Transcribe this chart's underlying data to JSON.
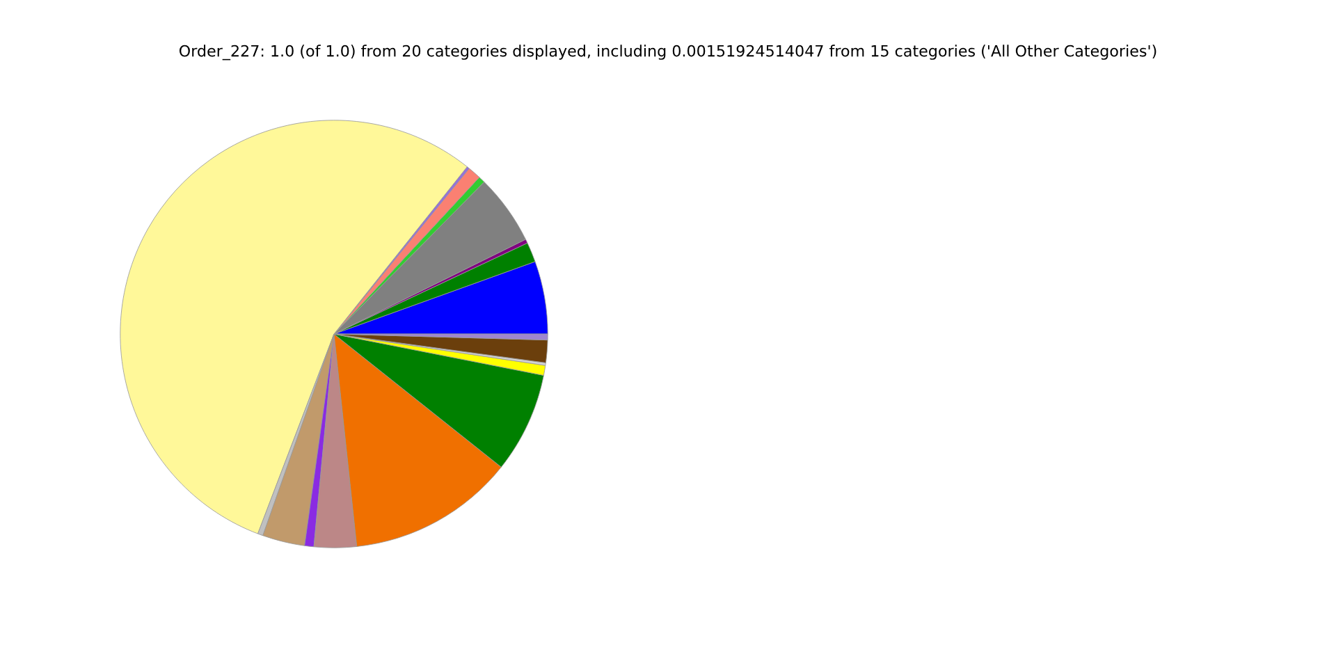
{
  "chart_data": {
    "type": "pie",
    "title": "Order_227: 1.0 (of 1.0) from 20 categories displayed, including 0.00151924514047 from 15 categories ('All Other Categories')",
    "categories": [
      null,
      null,
      null,
      null,
      null,
      null,
      null,
      null,
      null,
      null,
      null,
      null,
      null,
      null,
      null,
      null,
      null,
      null
    ],
    "values": [
      5.5,
      1.5,
      0.3,
      5.3,
      0.5,
      1.0,
      0.2,
      54.9,
      0.4,
      3.2,
      0.7,
      3.2,
      12.6,
      7.6,
      0.75,
      0.2,
      1.7,
      0.45
    ],
    "colors": [
      "#0000ff",
      "#008000",
      "#800080",
      "#808080",
      "#32cd32",
      "#fa8072",
      "#9370db",
      "#fff899",
      "#c0c0c0",
      "#c19a6b",
      "#8a2be2",
      "#bc8787",
      "#f07000",
      "#008000",
      "#ffff00",
      "#d3d3d3",
      "#6b3f0c",
      "#9f86d0"
    ]
  }
}
